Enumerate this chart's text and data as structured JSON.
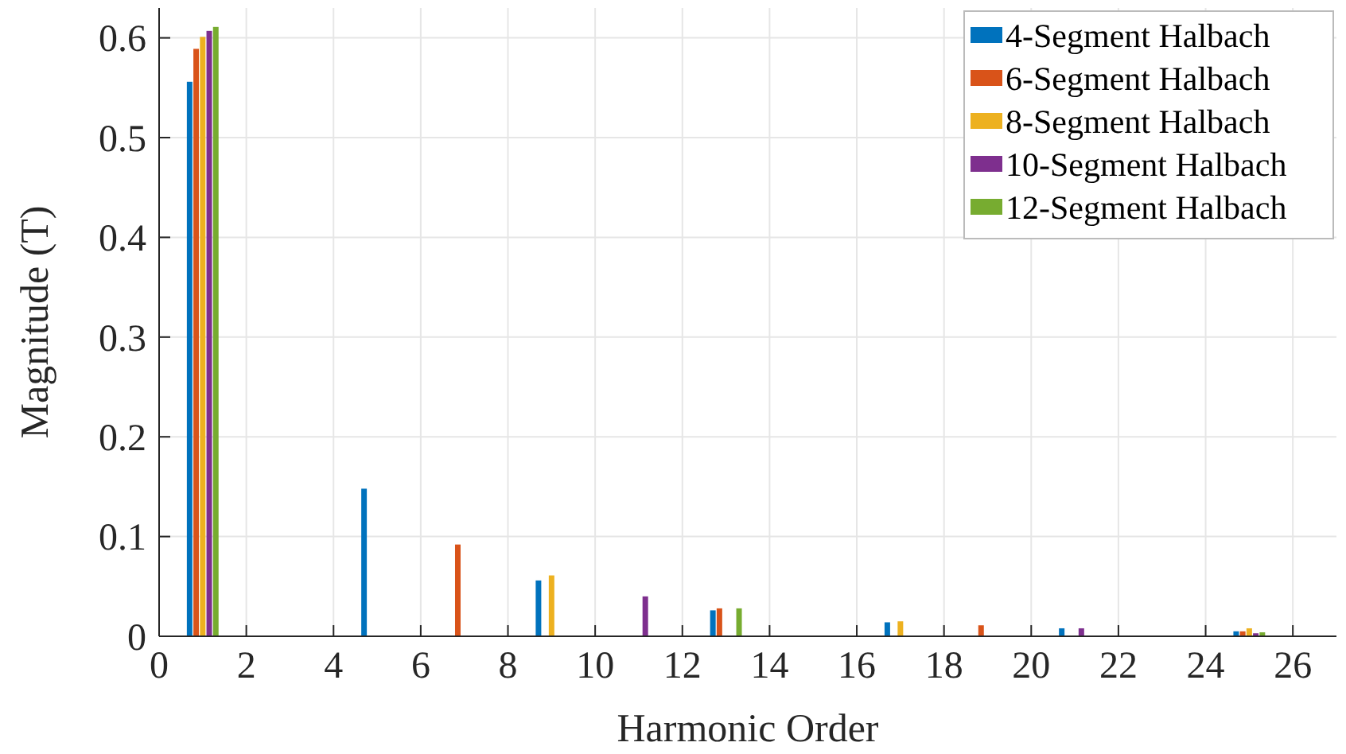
{
  "chart_data": {
    "type": "bar",
    "xlabel": "Harmonic Order",
    "ylabel": "Magnitude (T)",
    "x": [
      1,
      5,
      7,
      9,
      11,
      13,
      17,
      19,
      21,
      25
    ],
    "series": [
      {
        "name": "4-Segment Halbach",
        "color": "#0072bd",
        "values": [
          0.556,
          0.148,
          0,
          0.056,
          0,
          0.026,
          0.014,
          0,
          0.008,
          0.005
        ]
      },
      {
        "name": "6-Segment Halbach",
        "color": "#d95319",
        "values": [
          0.589,
          0,
          0.092,
          0,
          0,
          0.028,
          0,
          0.011,
          0,
          0.005
        ]
      },
      {
        "name": "8-Segment Halbach",
        "color": "#edb120",
        "values": [
          0.601,
          0,
          0,
          0.061,
          0,
          0,
          0.015,
          0,
          0,
          0.008
        ]
      },
      {
        "name": "10-Segment Halbach",
        "color": "#7e2f8e",
        "values": [
          0.607,
          0,
          0,
          0,
          0.04,
          0,
          0,
          0,
          0.008,
          0.003
        ]
      },
      {
        "name": "12-Segment Halbach",
        "color": "#77ac30",
        "values": [
          0.611,
          0,
          0,
          0,
          0,
          0.028,
          0,
          0,
          0,
          0.004
        ]
      }
    ],
    "xlim": [
      0,
      27
    ],
    "xticks": [
      0,
      2,
      4,
      6,
      8,
      10,
      12,
      14,
      16,
      18,
      20,
      22,
      24,
      26
    ],
    "ylim": [
      0,
      0.63
    ],
    "yticks": [
      0,
      0.1,
      0.2,
      0.3,
      0.4,
      0.5,
      0.6
    ],
    "grid": true,
    "legend": "top right"
  }
}
